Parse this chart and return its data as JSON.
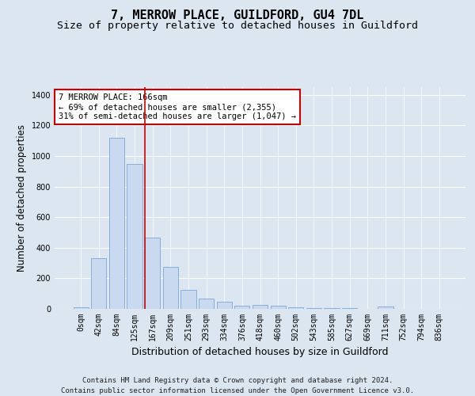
{
  "title": "7, MERROW PLACE, GUILDFORD, GU4 7DL",
  "subtitle": "Size of property relative to detached houses in Guildford",
  "xlabel": "Distribution of detached houses by size in Guildford",
  "ylabel": "Number of detached properties",
  "footnote1": "Contains HM Land Registry data © Crown copyright and database right 2024.",
  "footnote2": "Contains public sector information licensed under the Open Government Licence v3.0.",
  "categories": [
    "0sqm",
    "42sqm",
    "84sqm",
    "125sqm",
    "167sqm",
    "209sqm",
    "251sqm",
    "293sqm",
    "334sqm",
    "376sqm",
    "418sqm",
    "460sqm",
    "502sqm",
    "543sqm",
    "585sqm",
    "627sqm",
    "669sqm",
    "711sqm",
    "752sqm",
    "794sqm",
    "836sqm"
  ],
  "values": [
    10,
    330,
    1120,
    950,
    465,
    275,
    125,
    65,
    45,
    20,
    25,
    20,
    10,
    5,
    5,
    5,
    0,
    15,
    0,
    0,
    0
  ],
  "bar_color": "#c9d9ef",
  "bar_edge_color": "#7aa8d4",
  "highlight_index": 4,
  "highlight_line_color": "#cc0000",
  "annotation_text": "7 MERROW PLACE: 166sqm\n← 69% of detached houses are smaller (2,355)\n31% of semi-detached houses are larger (1,047) →",
  "annotation_box_color": "#ffffff",
  "annotation_box_edge_color": "#cc0000",
  "ylim": [
    0,
    1450
  ],
  "yticks": [
    0,
    200,
    400,
    600,
    800,
    1000,
    1200,
    1400
  ],
  "fig_background_color": "#dce6f0",
  "plot_background_color": "#dce6f0",
  "title_fontsize": 11,
  "subtitle_fontsize": 9.5,
  "xlabel_fontsize": 9,
  "ylabel_fontsize": 8.5,
  "tick_fontsize": 7,
  "annotation_fontsize": 7.5,
  "footnote_fontsize": 6.5
}
